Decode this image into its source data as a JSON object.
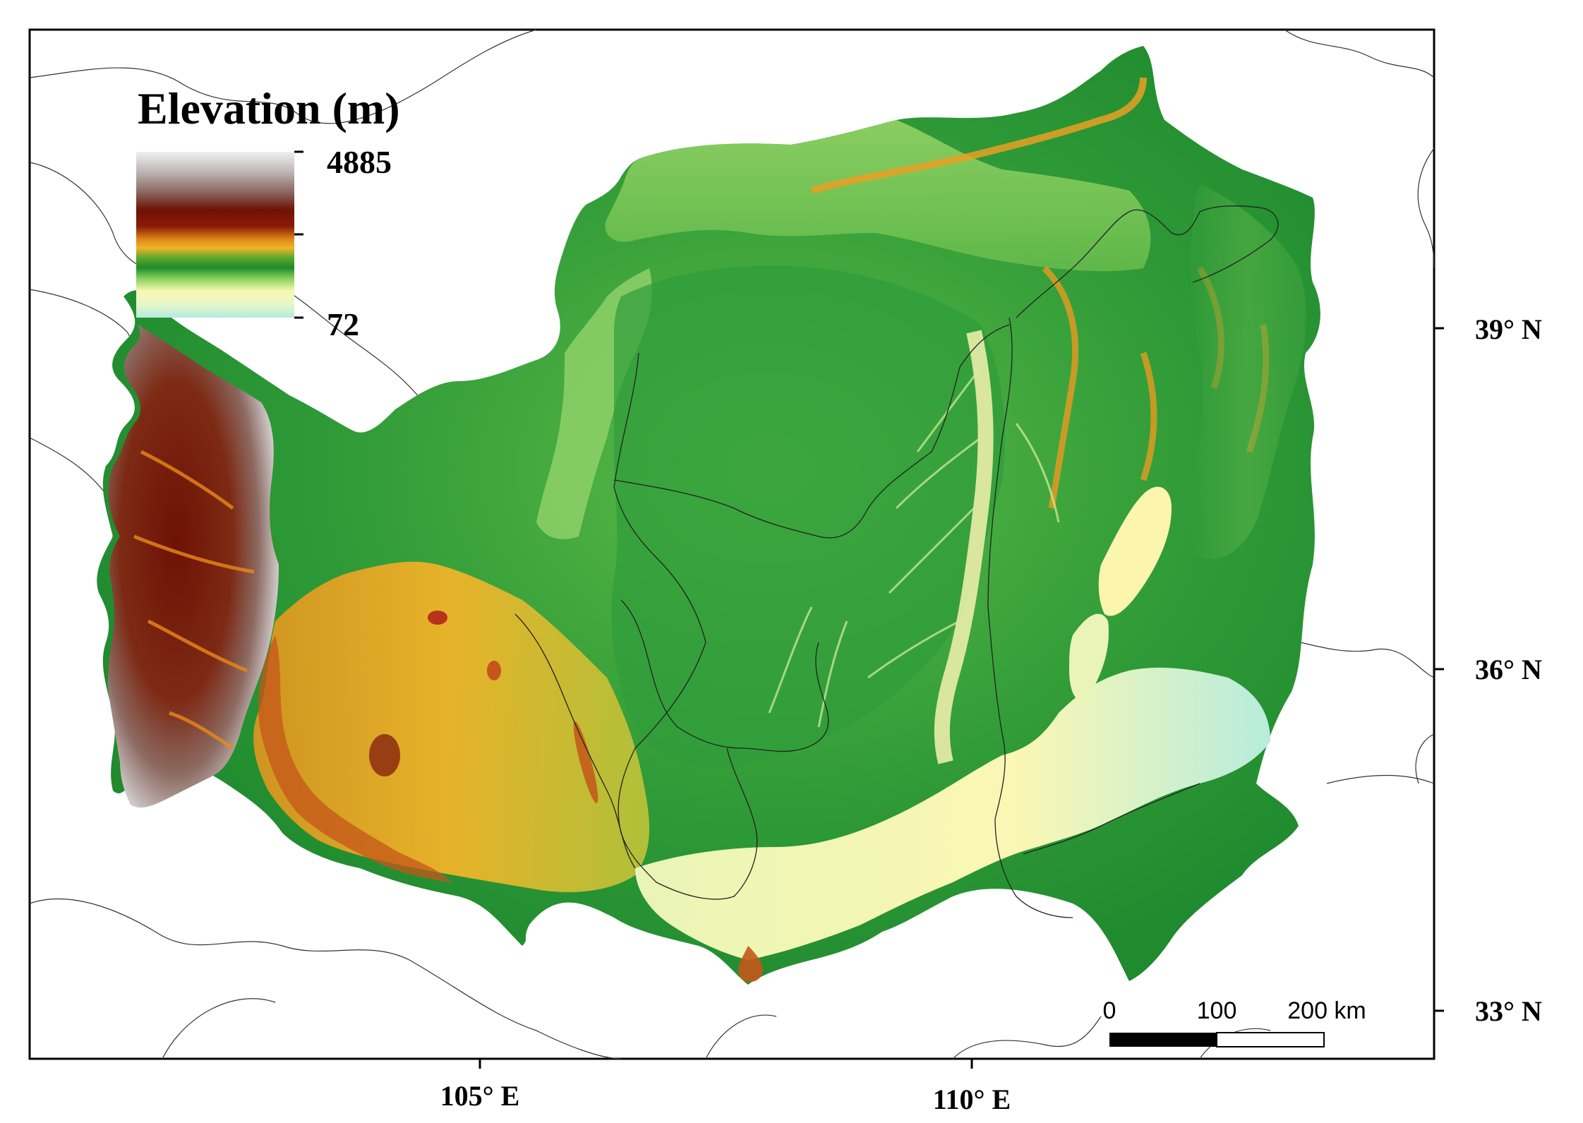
{
  "legend": {
    "title": "Elevation (m)",
    "max_label": "4885",
    "min_label": "72",
    "ramp_colors": [
      "#b2ebe0",
      "#e6f7c8",
      "#fbf7b4",
      "#7fcf55",
      "#1f8a2e",
      "#5aa82a",
      "#f0b429",
      "#e08a18",
      "#8c1a07",
      "#6e1205",
      "#8c6a62",
      "#bdb7b5",
      "#f0f0f0"
    ]
  },
  "axes": {
    "x_ticks": [
      "105° E",
      "110° E"
    ],
    "y_ticks": [
      "39° N",
      "36° N",
      "33° N"
    ]
  },
  "scale_bar": {
    "labels": [
      "0",
      "100",
      "200 km"
    ]
  },
  "colors": {
    "frame": "#000000",
    "boundary": "#333333",
    "plateau_low": "#f6f4b8",
    "plateau_mid": "#3aa13c",
    "plateau_high": "#6e1a0a"
  }
}
